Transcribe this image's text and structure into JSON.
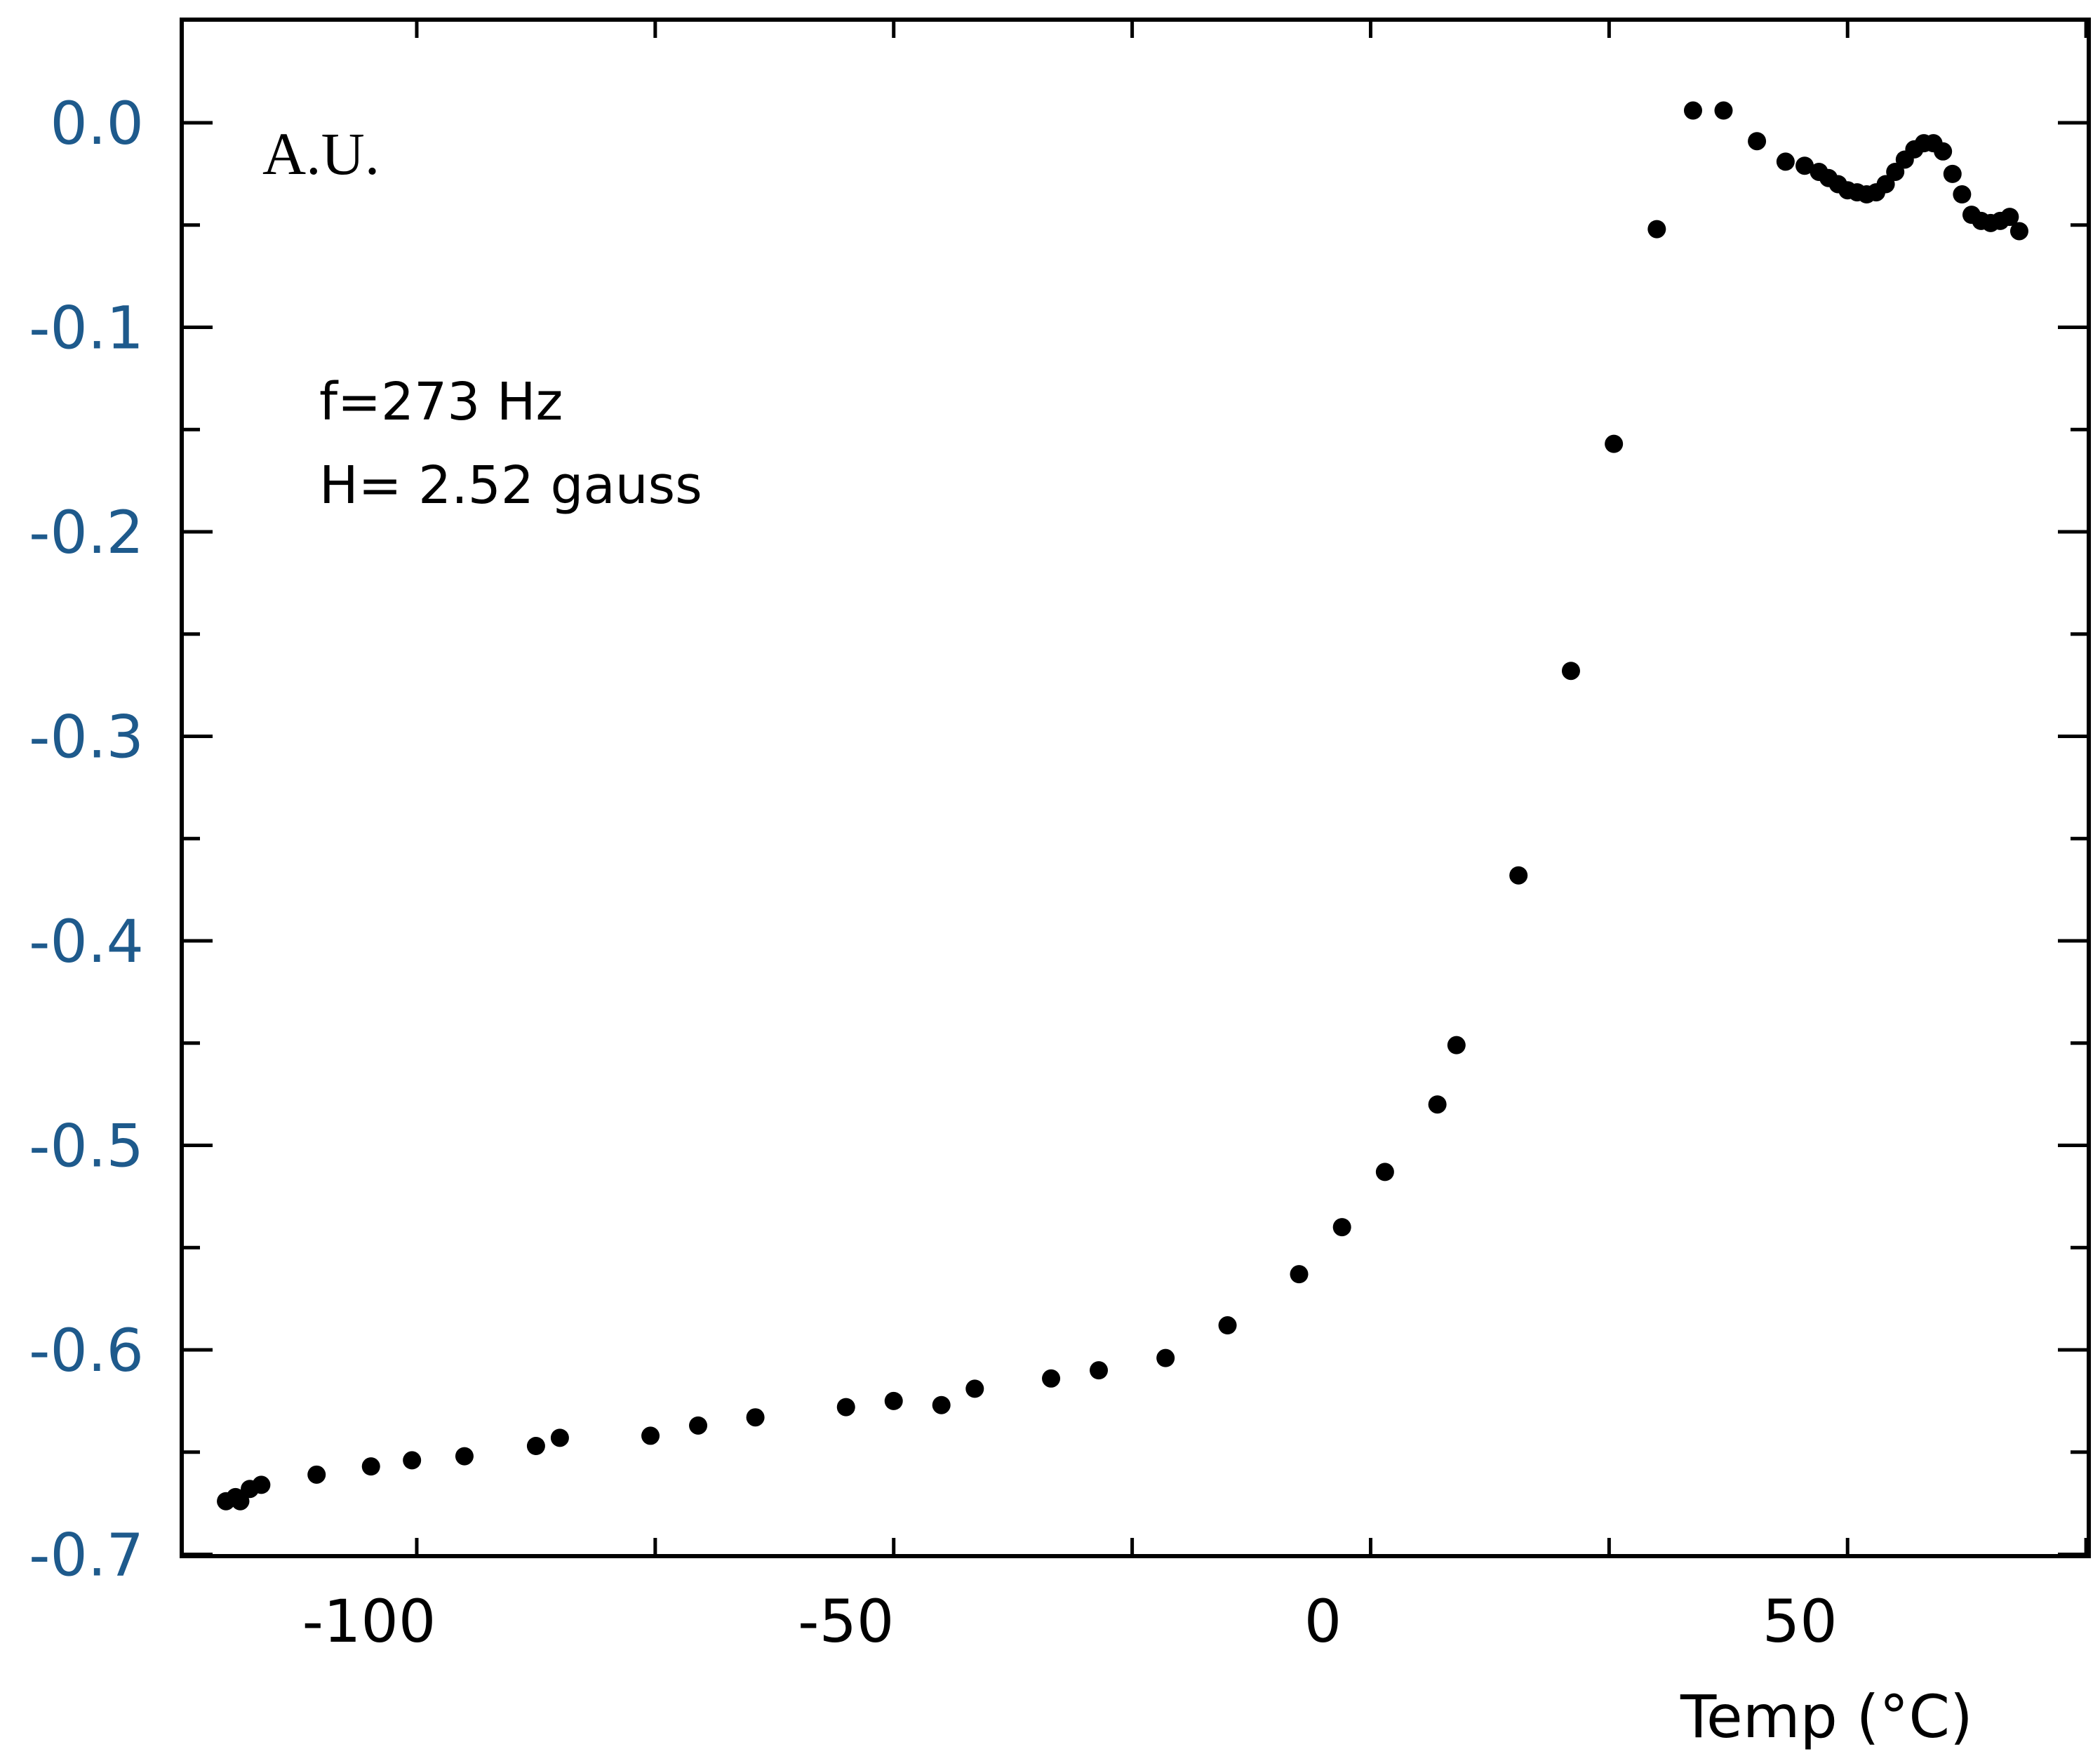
{
  "chart_data": {
    "type": "scatter",
    "title": "",
    "xlabel": "Temp (°C)",
    "ylabel": "A.U.",
    "xlim": [
      -120,
      80
    ],
    "ylim": [
      -0.7,
      0.05
    ],
    "x_ticks": [
      -100,
      -50,
      0,
      50
    ],
    "x_tick_labels": [
      "-100",
      "-50",
      "0",
      "50"
    ],
    "x_minor_step": 25,
    "y_ticks": [
      0.0,
      -0.1,
      -0.2,
      -0.3,
      -0.4,
      -0.5,
      -0.6,
      -0.7
    ],
    "y_tick_labels": [
      "0.0",
      "-0.1",
      "-0.2",
      "-0.3",
      "-0.4",
      "-0.5",
      "-0.6",
      "-0.7"
    ],
    "y_minor_step": 0.05,
    "grid": false,
    "annotations": [
      "f=273 Hz",
      "H= 2.52 gauss"
    ],
    "colors": {
      "marker": "#000000",
      "y_tick_label": "#1e5a8c",
      "axis": "#000000"
    },
    "series": [
      {
        "name": "data",
        "points": [
          [
            -115.0,
            -0.674
          ],
          [
            -114.0,
            -0.672
          ],
          [
            -113.5,
            -0.674
          ],
          [
            -112.5,
            -0.668
          ],
          [
            -111.3,
            -0.666
          ],
          [
            -105.5,
            -0.661
          ],
          [
            -99.8,
            -0.657
          ],
          [
            -95.5,
            -0.654
          ],
          [
            -90.0,
            -0.652
          ],
          [
            -82.5,
            -0.647
          ],
          [
            -80.0,
            -0.643
          ],
          [
            -70.5,
            -0.642
          ],
          [
            -65.5,
            -0.637
          ],
          [
            -59.5,
            -0.633
          ],
          [
            -50.0,
            -0.628
          ],
          [
            -45.0,
            -0.625
          ],
          [
            -40.0,
            -0.627
          ],
          [
            -36.5,
            -0.619
          ],
          [
            -28.5,
            -0.614
          ],
          [
            -23.5,
            -0.61
          ],
          [
            -16.5,
            -0.604
          ],
          [
            -10.0,
            -0.588
          ],
          [
            -2.5,
            -0.563
          ],
          [
            2.0,
            -0.54
          ],
          [
            6.5,
            -0.513
          ],
          [
            12.0,
            -0.48
          ],
          [
            14.0,
            -0.451
          ],
          [
            20.5,
            -0.368
          ],
          [
            26.0,
            -0.268
          ],
          [
            30.5,
            -0.157
          ],
          [
            35.0,
            -0.052
          ],
          [
            38.8,
            0.006
          ],
          [
            42.0,
            0.006
          ],
          [
            45.5,
            -0.009
          ],
          [
            48.5,
            -0.019
          ],
          [
            50.5,
            -0.021
          ],
          [
            52.0,
            -0.024
          ],
          [
            53.0,
            -0.027
          ],
          [
            54.0,
            -0.03
          ],
          [
            55.0,
            -0.033
          ],
          [
            56.0,
            -0.034
          ],
          [
            57.0,
            -0.035
          ],
          [
            58.0,
            -0.034
          ],
          [
            59.0,
            -0.03
          ],
          [
            60.0,
            -0.024
          ],
          [
            61.0,
            -0.018
          ],
          [
            62.0,
            -0.013
          ],
          [
            63.0,
            -0.01
          ],
          [
            64.0,
            -0.01
          ],
          [
            65.0,
            -0.014
          ],
          [
            66.0,
            -0.025
          ],
          [
            67.0,
            -0.035
          ],
          [
            68.0,
            -0.045
          ],
          [
            69.0,
            -0.048
          ],
          [
            70.0,
            -0.049
          ],
          [
            71.0,
            -0.048
          ],
          [
            72.0,
            -0.046
          ],
          [
            73.0,
            -0.053
          ]
        ]
      }
    ]
  }
}
